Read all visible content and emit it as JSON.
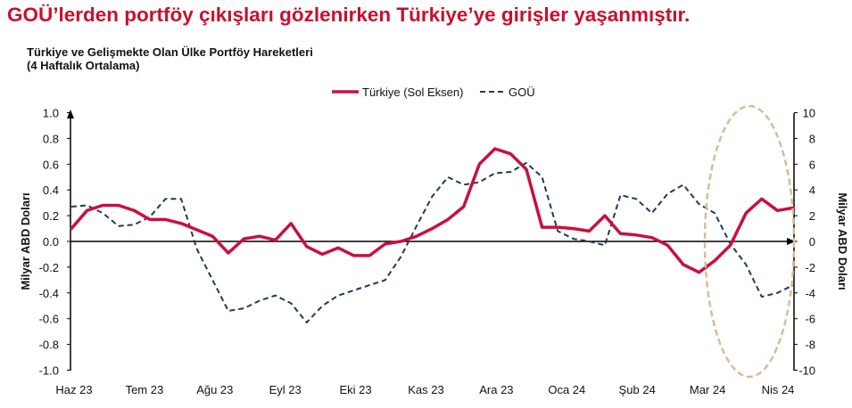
{
  "headline": "GOÜ’lerden portföy çıkışları gözlenirken Türkiye’ye girişler yaşanmıştır.",
  "subtitle_line1": "Türkiye ve Gelişmekte Olan Ülke Portföy Hareketleri",
  "subtitle_line2": "(4 Haftalık Ortalama)",
  "colors": {
    "headline": "#c8102e",
    "turkiye": "#c8103e",
    "gou": "#1f3a5c",
    "highlight_ellipse": "#d8bc98"
  },
  "chart_data": {
    "type": "line",
    "title": "Türkiye ve Gelişmekte Olan Ülke Portföy Hareketleri (4 Haftalık Ortalama)",
    "ylabel": "Milyar ABD Doları",
    "y2label": "Milyar ABD Doları",
    "ylim": [
      -1.0,
      1.0
    ],
    "y2lim": [
      -10,
      10
    ],
    "yticks": [
      "1.0",
      "0.8",
      "0.6",
      "0.4",
      "0.2",
      "0.0",
      "-0.2",
      "-0.4",
      "-0.6",
      "-0.8",
      "-1.0"
    ],
    "y2ticks": [
      "10",
      "8",
      "6",
      "4",
      "2",
      "0",
      "-2",
      "-4",
      "-6",
      "-8",
      "-10"
    ],
    "x_tick_labels": [
      "Haz 23",
      "Tem 23",
      "Ağu 23",
      "Eyl 23",
      "Eki 23",
      "Kas 23",
      "Ara 23",
      "Oca 24",
      "Şub 24",
      "Mar 24",
      "Nis 24"
    ],
    "legend_position": "top-center",
    "grid": false,
    "series": [
      {
        "name": "Türkiye (Sol Eksen)",
        "axis": "left",
        "style": "solid",
        "values": [
          0.1,
          0.24,
          0.28,
          0.28,
          0.24,
          0.17,
          0.17,
          0.14,
          0.09,
          0.04,
          -0.09,
          0.02,
          0.04,
          0.01,
          0.14,
          -0.04,
          -0.1,
          -0.05,
          -0.11,
          -0.11,
          -0.02,
          0.0,
          0.04,
          0.1,
          0.17,
          0.27,
          0.6,
          0.72,
          0.68,
          0.56,
          0.11,
          0.11,
          0.1,
          0.08,
          0.2,
          0.06,
          0.05,
          0.03,
          -0.03,
          -0.18,
          -0.24,
          -0.15,
          -0.03,
          0.22,
          0.33,
          0.24,
          0.26
        ]
      },
      {
        "name": "GOÜ",
        "axis": "right",
        "style": "dashed",
        "values": [
          2.7,
          2.8,
          2.2,
          1.2,
          1.3,
          1.9,
          3.3,
          3.3,
          -0.6,
          -3.0,
          -5.4,
          -5.2,
          -4.6,
          -4.2,
          -4.8,
          -6.3,
          -5.0,
          -4.2,
          -3.8,
          -3.4,
          -3.0,
          -1.2,
          1.2,
          3.5,
          5.0,
          4.4,
          4.6,
          5.3,
          5.4,
          6.1,
          5.0,
          0.8,
          0.2,
          0.0,
          -0.3,
          3.6,
          3.3,
          2.2,
          3.7,
          4.4,
          2.9,
          2.2,
          -0.2,
          -1.8,
          -4.3,
          -4.0,
          -3.4
        ]
      }
    ]
  }
}
